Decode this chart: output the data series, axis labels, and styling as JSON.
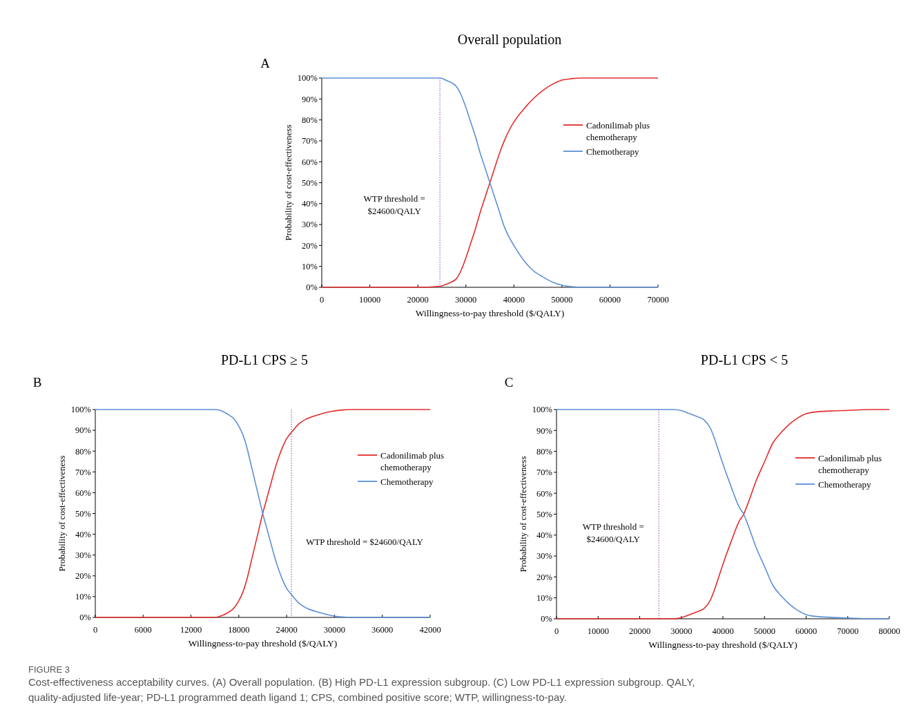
{
  "chart_data": [
    {
      "type": "line",
      "title": "Overall population",
      "xlabel": "Willingness-to-pay threshold ($/QALY)",
      "ylabel": "Probability of cost-effectiveness",
      "annotations": [
        "A",
        "FIGURE 3",
        "Cost-effectiveness acceptability curves. (A) Overall population. (B) High PD-L1 expression subgroup. (C) Low PD-L1 expression subgroup. QALY, quality-adjusted life-year; PD-L1 programmed death ligand 1; CPS, combined positive score; WTP, willingness-to-pay."
      ],
      "xlim": [
        0,
        70000
      ],
      "xticks": [
        0,
        10000,
        20000,
        30000,
        40000,
        50000,
        60000,
        70000
      ],
      "ylim": [
        0,
        100
      ],
      "yticks": [
        {
          "value": 0,
          "label": "0%"
        },
        {
          "value": 10,
          "label": "10%"
        },
        {
          "value": 20,
          "label": "20%"
        },
        {
          "value": 30,
          "label": "30%"
        },
        {
          "value": 40,
          "label": "40%"
        },
        {
          "value": 50,
          "label": "50%"
        },
        {
          "value": 60,
          "label": "60%"
        },
        {
          "value": 70,
          "label": "70%"
        },
        {
          "value": 80,
          "label": "80%"
        },
        {
          "value": 90,
          "label": "90%"
        },
        {
          "value": 100,
          "label": "100%"
        }
      ],
      "grid": false,
      "legend": "right",
      "ref_lines": [
        {
          "axis": "x",
          "value": 24600,
          "label": "WTP threshold = $24600/QALY",
          "color": "#a05ac8",
          "line_style": "dotted"
        }
      ],
      "series": [
        {
          "name": "Cadonilimab plus chemotherapy",
          "color": "#e32b2b",
          "x": [
            0,
            10000,
            20000,
            24600,
            26000,
            27000,
            28000,
            29000,
            30000,
            31000,
            32000,
            33000,
            34000,
            35000,
            36000,
            37000,
            38000,
            39000,
            40000,
            42000,
            44000,
            46000,
            48000,
            50000,
            52000,
            54000,
            60000,
            70000
          ],
          "values": [
            0,
            0,
            0,
            0.5,
            1.5,
            2.5,
            4,
            8,
            14,
            21,
            28,
            36,
            43,
            50,
            57,
            64,
            70,
            75,
            79,
            85,
            90,
            94,
            97,
            99,
            99.7,
            100,
            100,
            100
          ]
        },
        {
          "name": "Chemotherapy",
          "color": "#5b8fd6",
          "x": [
            0,
            10000,
            20000,
            24600,
            26000,
            27000,
            28000,
            29000,
            30000,
            31000,
            32000,
            33000,
            34000,
            35000,
            36000,
            37000,
            38000,
            39000,
            40000,
            42000,
            44000,
            46000,
            48000,
            50000,
            52000,
            54000,
            60000,
            70000
          ],
          "values": [
            100,
            100,
            100,
            100,
            98.8,
            97.8,
            96,
            92,
            86,
            79,
            72,
            64,
            57,
            50,
            43,
            36,
            29,
            24,
            20,
            13,
            8,
            5,
            2.5,
            1,
            0.3,
            0,
            0,
            0
          ]
        }
      ]
    },
    {
      "type": "line",
      "title": "PD-L1 CPS ≥ 5",
      "xlabel": "Willingness-to-pay threshold ($/QALY)",
      "ylabel": "Probability of cost-effectiveness",
      "annotations": [
        "B"
      ],
      "xlim": [
        0,
        42000
      ],
      "xticks": [
        0,
        6000,
        12000,
        18000,
        24000,
        30000,
        36000,
        42000
      ],
      "ylim": [
        0,
        100
      ],
      "yticks": [
        {
          "value": 0,
          "label": "0%"
        },
        {
          "value": 10,
          "label": "10%"
        },
        {
          "value": 20,
          "label": "20%"
        },
        {
          "value": 30,
          "label": "30%"
        },
        {
          "value": 40,
          "label": "40%"
        },
        {
          "value": 50,
          "label": "50%"
        },
        {
          "value": 60,
          "label": "60%"
        },
        {
          "value": 70,
          "label": "70%"
        },
        {
          "value": 80,
          "label": "80%"
        },
        {
          "value": 90,
          "label": "90%"
        },
        {
          "value": 100,
          "label": "100%"
        }
      ],
      "grid": false,
      "legend": "right",
      "ref_lines": [
        {
          "axis": "x",
          "value": 24600,
          "label": "WTP threshold = $24600/QALY",
          "color": "#a05ac8",
          "line_style": "dotted"
        }
      ],
      "series": [
        {
          "name": "Cadonilimab plus chemotherapy",
          "color": "#e32b2b",
          "x": [
            0,
            6000,
            12000,
            15000,
            15600,
            16500,
            17500,
            18000,
            18500,
            19000,
            19500,
            20000,
            20500,
            21000,
            21500,
            22000,
            22500,
            23000,
            23500,
            24000,
            24600,
            25500,
            26500,
            28000,
            29500,
            31000,
            32000,
            36000,
            42000
          ],
          "values": [
            0,
            0,
            0,
            0,
            0.5,
            2,
            5,
            8,
            12,
            18,
            26,
            34,
            42,
            50,
            57,
            64,
            71,
            77,
            82,
            86,
            89,
            93,
            95.5,
            97.5,
            99,
            99.8,
            100,
            100,
            100
          ]
        },
        {
          "name": "Chemotherapy",
          "color": "#5b8fd6",
          "x": [
            0,
            6000,
            12000,
            15000,
            15600,
            16500,
            17500,
            18000,
            18500,
            19000,
            19500,
            20000,
            20500,
            21000,
            21500,
            22000,
            22500,
            23000,
            23500,
            24000,
            24600,
            25500,
            26500,
            28000,
            29500,
            31000,
            32000,
            36000,
            42000
          ],
          "values": [
            100,
            100,
            100,
            100,
            99.7,
            98,
            95,
            92,
            88,
            82,
            74,
            66,
            58,
            50,
            43,
            36,
            29,
            23,
            18,
            14,
            11,
            7,
            4.5,
            2.5,
            1,
            0.2,
            0,
            0,
            0
          ]
        }
      ]
    },
    {
      "type": "line",
      "title": "PD-L1 CPS < 5",
      "xlabel": "Willingness-to-pay threshold ($/QALY)",
      "ylabel": "Probability of cost-effectiveness",
      "annotations": [
        "C"
      ],
      "xlim": [
        0,
        80000
      ],
      "xticks": [
        0,
        10000,
        20000,
        30000,
        40000,
        50000,
        60000,
        70000,
        80000
      ],
      "ylim": [
        0,
        100
      ],
      "yticks": [
        {
          "value": 0,
          "label": "0%"
        },
        {
          "value": 10,
          "label": "10%"
        },
        {
          "value": 20,
          "label": "20%"
        },
        {
          "value": 30,
          "label": "30%"
        },
        {
          "value": 40,
          "label": "40%"
        },
        {
          "value": 50,
          "label": "50%"
        },
        {
          "value": 60,
          "label": "60%"
        },
        {
          "value": 70,
          "label": "70%"
        },
        {
          "value": 80,
          "label": "80%"
        },
        {
          "value": 90,
          "label": "90%"
        },
        {
          "value": 100,
          "label": "100%"
        }
      ],
      "grid": false,
      "legend": "right",
      "ref_lines": [
        {
          "axis": "x",
          "value": 24600,
          "label": "WTP threshold = $24600/QALY",
          "color": "#a05ac8",
          "line_style": "dotted"
        }
      ],
      "series": [
        {
          "name": "Cadonilimab plus chemotherapy",
          "color": "#e32b2b",
          "x": [
            0,
            10000,
            20000,
            28000,
            30000,
            32000,
            34000,
            35500,
            37000,
            38000,
            39000,
            40000,
            42000,
            44000,
            45000,
            46000,
            48000,
            50000,
            52000,
            54000,
            56000,
            58000,
            60000,
            62000,
            66000,
            70000,
            75000,
            80000
          ],
          "values": [
            0,
            0,
            0,
            0,
            0.5,
            2,
            3.5,
            5,
            9,
            14,
            20,
            26,
            37,
            47,
            50,
            55,
            66,
            75,
            84,
            89,
            93,
            96,
            98,
            98.8,
            99.3,
            99.6,
            100,
            100
          ]
        },
        {
          "name": "Chemotherapy",
          "color": "#5b8fd6",
          "x": [
            0,
            10000,
            20000,
            28000,
            30000,
            32000,
            34000,
            35500,
            37000,
            38000,
            39000,
            40000,
            42000,
            44000,
            45000,
            46000,
            48000,
            50000,
            52000,
            54000,
            56000,
            58000,
            60000,
            62000,
            66000,
            70000,
            75000,
            80000
          ],
          "values": [
            100,
            100,
            100,
            100,
            99.5,
            98,
            96.5,
            95,
            91,
            86,
            80,
            74,
            63,
            53,
            50,
            45,
            34,
            25,
            16,
            11,
            7,
            4,
            2,
            1.2,
            0.7,
            0.4,
            0,
            0
          ]
        }
      ]
    }
  ]
}
